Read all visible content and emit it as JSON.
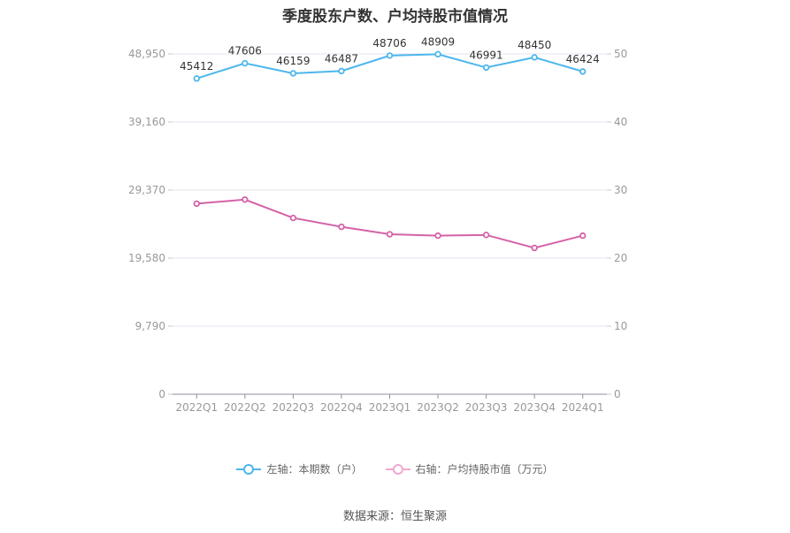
{
  "chart_data": {
    "type": "line",
    "title": "季度股东户数、户均持股市值情况",
    "categories": [
      "2022Q1",
      "2022Q2",
      "2022Q3",
      "2022Q4",
      "2023Q1",
      "2023Q2",
      "2023Q3",
      "2023Q4",
      "2024Q1"
    ],
    "y_left": {
      "ticks": [
        "0",
        "9,790",
        "19,580",
        "29,370",
        "39,160",
        "48,950"
      ],
      "range": [
        0,
        48950
      ]
    },
    "y_right": {
      "ticks": [
        "0",
        "10",
        "20",
        "30",
        "40",
        "50"
      ],
      "range": [
        0,
        50
      ]
    },
    "grid": true,
    "legend_position": "bottom",
    "series": [
      {
        "name": "左轴：本期数（户）",
        "axis": "left",
        "color": "#4db6ec",
        "values": [
          45412,
          47606,
          46159,
          46487,
          48706,
          48909,
          46991,
          48450,
          46424
        ],
        "show_labels": true
      },
      {
        "name": "右轴：户均持股市值（万元）",
        "axis": "right",
        "color": "#d462a8",
        "values": [
          28.0,
          28.6,
          25.9,
          24.6,
          23.5,
          23.3,
          23.4,
          21.5,
          23.3
        ],
        "show_labels": false
      }
    ]
  },
  "footer": {
    "source": "数据来源：恒生聚源"
  }
}
